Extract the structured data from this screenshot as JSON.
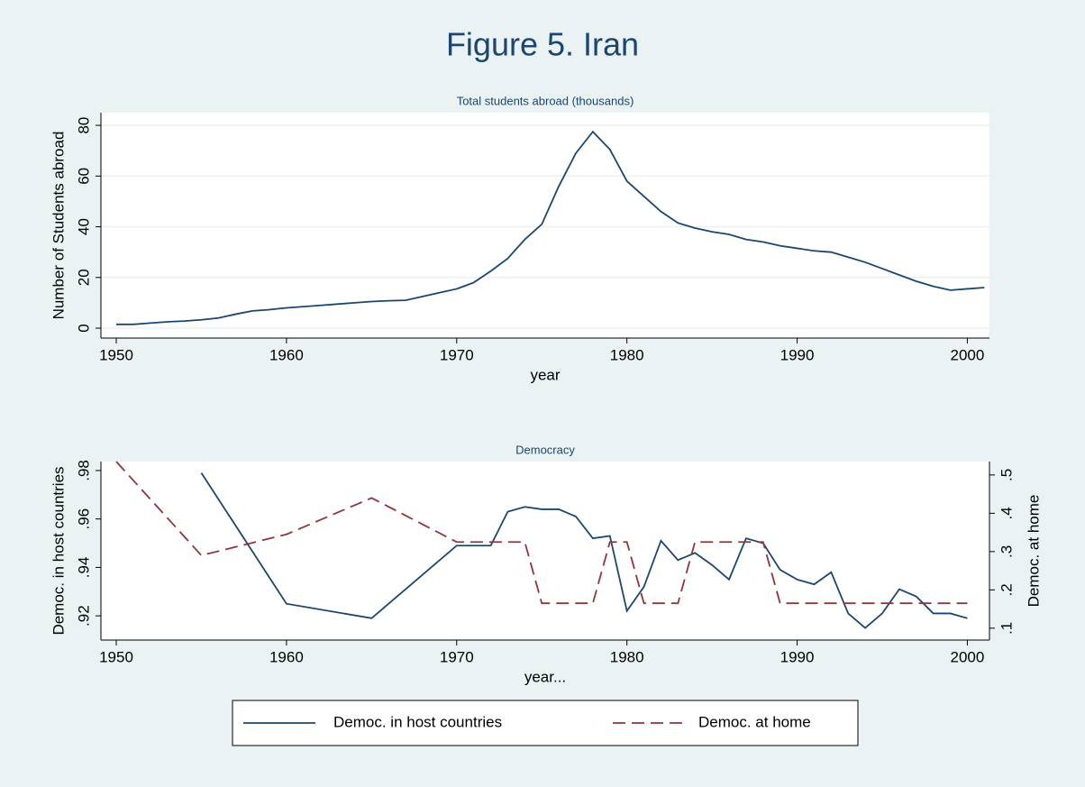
{
  "title": "Figure 5. Iran",
  "chart_data": [
    {
      "type": "line",
      "subtitle": "Total students abroad (thousands)",
      "x_label": "year",
      "y_label": "Number of Students abroad",
      "xlim": [
        1949.1,
        2001.3
      ],
      "ylim": [
        -3.9,
        85
      ],
      "xticks": [
        1950,
        1960,
        1970,
        1980,
        1990,
        2000
      ],
      "yticks": [
        0,
        20,
        40,
        60,
        80
      ],
      "grid": true,
      "series": [
        {
          "name": "Total students abroad",
          "color": "#1a476f",
          "line_style": "solid",
          "x": [
            1950,
            1951,
            1952,
            1953,
            1954,
            1955,
            1956,
            1957,
            1958,
            1959,
            1960,
            1961,
            1962,
            1963,
            1964,
            1965,
            1966,
            1967,
            1968,
            1969,
            1970,
            1971,
            1972,
            1973,
            1974,
            1975,
            1976,
            1977,
            1978,
            1979,
            1980,
            1981,
            1982,
            1983,
            1984,
            1985,
            1986,
            1987,
            1988,
            1989,
            1990,
            1991,
            1992,
            1993,
            1994,
            1995,
            1996,
            1997,
            1998,
            1999,
            2000,
            2001
          ],
          "values": [
            1.5,
            1.5,
            2,
            2.5,
            2.8,
            3.3,
            4,
            5.5,
            6.8,
            7.3,
            8,
            8.5,
            9,
            9.5,
            10,
            10.5,
            10.8,
            11,
            12.5,
            14,
            15.5,
            18,
            22.5,
            27.5,
            35,
            41,
            56,
            69,
            77.5,
            70.5,
            58,
            52,
            46,
            41.5,
            39.5,
            38,
            37,
            35,
            34,
            32.5,
            31.5,
            30.5,
            30,
            28,
            26,
            23.5,
            21,
            18.5,
            16.5,
            15,
            15.5,
            16
          ]
        }
      ]
    },
    {
      "type": "line",
      "subtitle": "Democracy",
      "x_label": "year...",
      "y_label": "Democ. in host countries",
      "y2_label": "Democ. at home",
      "xlim": [
        1949.1,
        2001.3
      ],
      "ylim": [
        0.91,
        0.9837
      ],
      "y2lim": [
        0.069,
        0.535
      ],
      "xticks": [
        1950,
        1960,
        1970,
        1980,
        1990,
        2000
      ],
      "yticks": [
        {
          "value": 0.92,
          "label": ".92"
        },
        {
          "value": 0.94,
          "label": ".94"
        },
        {
          "value": 0.96,
          "label": ".96"
        },
        {
          "value": 0.98,
          "label": ".98"
        }
      ],
      "y2ticks": [
        {
          "value": 0.1,
          "label": ".1"
        },
        {
          "value": 0.2,
          "label": ".2"
        },
        {
          "value": 0.3,
          "label": ".3"
        },
        {
          "value": 0.4,
          "label": ".4"
        },
        {
          "value": 0.5,
          "label": ".5"
        }
      ],
      "grid": false,
      "legend": "bottom",
      "series": [
        {
          "name": "Democ. in host countries",
          "color": "#1a476f",
          "line_style": "solid",
          "axis": "y",
          "x": [
            1955,
            1960,
            1965,
            1970,
            1971,
            1972,
            1973,
            1974,
            1975,
            1976,
            1977,
            1978,
            1979,
            1980,
            1981,
            1982,
            1983,
            1984,
            1985,
            1986,
            1987,
            1988,
            1989,
            1990,
            1991,
            1992,
            1993,
            1994,
            1995,
            1996,
            1997,
            1998,
            1999,
            2000
          ],
          "values": [
            0.979,
            0.925,
            0.919,
            0.949,
            0.949,
            0.949,
            0.963,
            0.965,
            0.964,
            0.964,
            0.961,
            0.952,
            0.953,
            0.922,
            0.932,
            0.951,
            0.943,
            0.946,
            0.941,
            0.935,
            0.952,
            0.95,
            0.939,
            0.935,
            0.933,
            0.938,
            0.921,
            0.915,
            0.921,
            0.931,
            0.928,
            0.921,
            0.921,
            0.919
          ]
        },
        {
          "name": "Democ. at home",
          "color": "#90353b",
          "line_style": "dash",
          "axis": "y2",
          "x": [
            1950,
            1955,
            1960,
            1965,
            1970,
            1974,
            1975,
            1978,
            1979,
            1980,
            1981,
            1983,
            1984,
            1988,
            1989,
            2000
          ],
          "values": [
            0.535,
            0.29,
            0.345,
            0.44,
            0.325,
            0.325,
            0.165,
            0.165,
            0.325,
            0.325,
            0.165,
            0.165,
            0.325,
            0.325,
            0.165,
            0.165
          ]
        }
      ]
    }
  ]
}
